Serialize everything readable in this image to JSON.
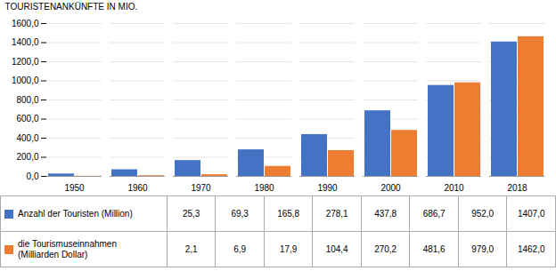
{
  "chart_data": {
    "type": "bar",
    "categories": [
      "1950",
      "1960",
      "1970",
      "1980",
      "1990",
      "2000",
      "2010",
      "2018"
    ],
    "series": [
      {
        "name": "Anzahl der Touristen (Million)",
        "color": "#4472C4",
        "values": [
          25.3,
          69.3,
          165.8,
          278.1,
          437.8,
          686.7,
          952.0,
          1407.0
        ],
        "value_labels": [
          "25,3",
          "69,3",
          "165,8",
          "278,1",
          "437,8",
          "686,7",
          "952,0",
          "1407,0"
        ]
      },
      {
        "name": "die Tourismuseinnahmen\n(Milliarden Dollar)",
        "color": "#ED7D31",
        "values": [
          2.1,
          6.9,
          17.9,
          104.4,
          270.2,
          481.6,
          979.0,
          1462.0
        ],
        "value_labels": [
          "2,1",
          "6,9",
          "17,9",
          "104,4",
          "270,2",
          "481,6",
          "979,0",
          "1462,0"
        ]
      }
    ],
    "ylabel": "TOURISTENANKÜNFTE IN MIO.",
    "ylim": [
      0,
      1600
    ],
    "yticks": [
      {
        "value": 0,
        "label": "0,0"
      },
      {
        "value": 200,
        "label": "200,0"
      },
      {
        "value": 400,
        "label": "400,0"
      },
      {
        "value": 600,
        "label": "600,0"
      },
      {
        "value": 800,
        "label": "800,0"
      },
      {
        "value": 1000,
        "label": "1000,0"
      },
      {
        "value": 1200,
        "label": "1200,0"
      },
      {
        "value": 1400,
        "label": "1400,0"
      },
      {
        "value": 1600,
        "label": "1600,0"
      }
    ],
    "grid": true,
    "legend": "bottom"
  }
}
